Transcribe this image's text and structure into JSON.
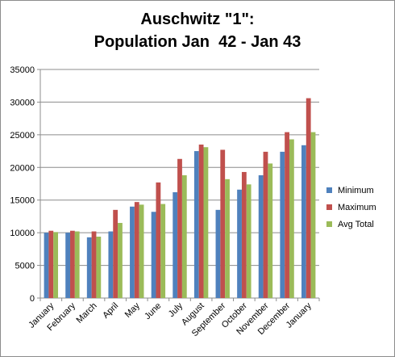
{
  "chart_data": {
    "type": "bar",
    "title_lines": [
      "Auschwitz \"1\":",
      "Population Jan  42 - Jan 43"
    ],
    "xlabel": "",
    "ylabel": "",
    "ylim": [
      0,
      35000
    ],
    "yticks": [
      0,
      5000,
      10000,
      15000,
      20000,
      25000,
      30000,
      35000
    ],
    "grid": true,
    "legend_position": "right",
    "categories": [
      "January",
      "February",
      "March",
      "April",
      "May",
      "June",
      "July",
      "August",
      "September",
      "October",
      "November",
      "December",
      "January"
    ],
    "series": [
      {
        "name": "Minimum",
        "color": "#4f81bd",
        "values": [
          10000,
          10000,
          9300,
          10200,
          14000,
          13200,
          16200,
          22500,
          13500,
          16600,
          18800,
          22400,
          23400
        ]
      },
      {
        "name": "Maximum",
        "color": "#c0504d",
        "values": [
          10300,
          10300,
          10200,
          13500,
          14700,
          17700,
          21300,
          23500,
          22700,
          19300,
          22400,
          25400,
          30600
        ]
      },
      {
        "name": "Avg Total",
        "color": "#9bbb59",
        "values": [
          10100,
          10200,
          9400,
          11500,
          14300,
          14400,
          18800,
          23100,
          18200,
          17400,
          20600,
          24300,
          25400
        ]
      }
    ]
  }
}
